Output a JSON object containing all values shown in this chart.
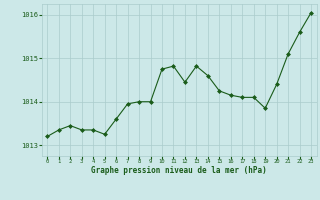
{
  "x": [
    0,
    1,
    2,
    3,
    4,
    5,
    6,
    7,
    8,
    9,
    10,
    11,
    12,
    13,
    14,
    15,
    16,
    17,
    18,
    19,
    20,
    21,
    22,
    23
  ],
  "y": [
    1013.2,
    1013.35,
    1013.45,
    1013.35,
    1013.35,
    1013.25,
    1013.6,
    1013.95,
    1014.0,
    1014.0,
    1014.75,
    1014.82,
    1014.45,
    1014.82,
    1014.6,
    1014.25,
    1014.15,
    1014.1,
    1014.1,
    1013.85,
    1014.4,
    1015.1,
    1015.6,
    1016.05
  ],
  "ylim": [
    1012.75,
    1016.25
  ],
  "yticks": [
    1013,
    1014,
    1015,
    1016
  ],
  "xticks": [
    0,
    1,
    2,
    3,
    4,
    5,
    6,
    7,
    8,
    9,
    10,
    11,
    12,
    13,
    14,
    15,
    16,
    17,
    18,
    19,
    20,
    21,
    22,
    23
  ],
  "line_color": "#1a5c1a",
  "marker_color": "#1a5c1a",
  "bg_color": "#cce8e8",
  "grid_color": "#aacccc",
  "xlabel": "Graphe pression niveau de la mer (hPa)",
  "xlabel_color": "#1a5c1a",
  "tick_color": "#1a5c1a"
}
